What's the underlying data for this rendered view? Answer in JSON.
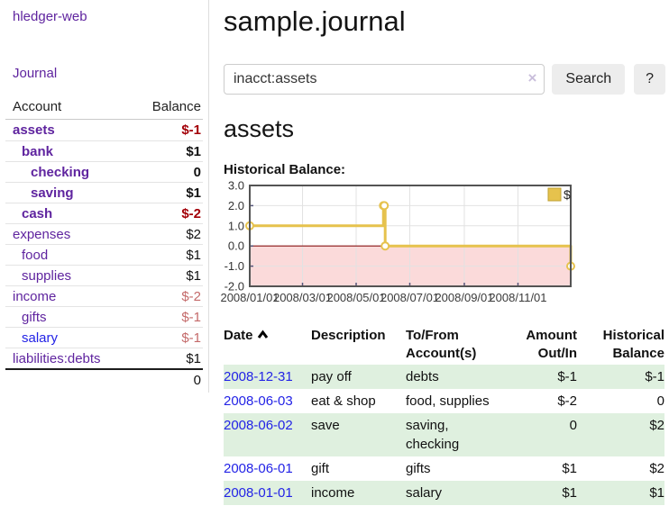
{
  "app": {
    "brand": "hledger-web"
  },
  "nav": {
    "journal": "Journal"
  },
  "sidebar": {
    "header": {
      "account": "Account",
      "balance": "Balance"
    },
    "rows": [
      {
        "name": "assets",
        "balance": "$-1",
        "depth": 1,
        "bold": true,
        "balance_style": "neg-strong"
      },
      {
        "name": "bank",
        "balance": "$1",
        "depth": 2,
        "bold": true,
        "balance_style": "pos"
      },
      {
        "name": "checking",
        "balance": "0",
        "depth": 3,
        "bold": true,
        "balance_style": "pos"
      },
      {
        "name": "saving",
        "balance": "$1",
        "depth": 3,
        "bold": true,
        "balance_style": "pos"
      },
      {
        "name": "cash",
        "balance": "$-2",
        "depth": 2,
        "bold": true,
        "balance_style": "neg-strong"
      },
      {
        "name": "expenses",
        "balance": "$2",
        "depth": 1,
        "bold": false,
        "balance_style": "pos"
      },
      {
        "name": "food",
        "balance": "$1",
        "depth": 2,
        "bold": false,
        "balance_style": "pos"
      },
      {
        "name": "supplies",
        "balance": "$1",
        "depth": 2,
        "bold": false,
        "balance_style": "pos"
      },
      {
        "name": "income",
        "balance": "$-2",
        "depth": 1,
        "bold": false,
        "balance_style": "neg-soft"
      },
      {
        "name": "gifts",
        "balance": "$-1",
        "depth": 2,
        "bold": false,
        "balance_style": "neg-soft"
      },
      {
        "name": "salary",
        "balance": "$-1",
        "depth": 2,
        "bold": false,
        "balance_style": "neg-soft",
        "link": "blue"
      },
      {
        "name": "liabilities:debts",
        "balance": "$1",
        "depth": 1,
        "bold": false,
        "balance_style": "pos"
      }
    ],
    "total": "0"
  },
  "header": {
    "title": "sample.journal"
  },
  "search": {
    "value": "inacct:assets",
    "clear_glyph": "×",
    "button_label": "Search",
    "help_label": "?"
  },
  "account_page": {
    "title": "assets",
    "chart_label": "Historical Balance:"
  },
  "chart_data": {
    "type": "line",
    "title": "Historical Balance:",
    "step": true,
    "series": [
      {
        "name": "$",
        "color": "#e6c24d",
        "points": [
          [
            "2008-01-01",
            1
          ],
          [
            "2008-06-01",
            2
          ],
          [
            "2008-06-02",
            2
          ],
          [
            "2008-06-03",
            0
          ],
          [
            "2008-12-31",
            -1
          ]
        ]
      }
    ],
    "ylim": [
      -2,
      3
    ],
    "yticks": [
      3.0,
      2.0,
      1.0,
      0.0,
      -1.0,
      -2.0
    ],
    "xticks": [
      "2008/01/01",
      "2008/03/01",
      "2008/05/01",
      "2008/07/01",
      "2008/09/01",
      "2008/11/01"
    ],
    "x_range_days": 365,
    "grid": true,
    "negative_fill": "#fbdada",
    "zero_line_color": "#8b1414",
    "border_color": "#545454",
    "legend": {
      "label": "$",
      "position": "top-right",
      "swatch_color": "#e6c24d"
    }
  },
  "register": {
    "headers": {
      "date": "Date",
      "description": "Description",
      "tofrom1": "To/From",
      "tofrom2": "Account(s)",
      "amount1": "Amount",
      "amount2": "Out/In",
      "balance1": "Historical",
      "balance2": "Balance"
    },
    "rows": [
      {
        "date": "2008-12-31",
        "description": "pay off",
        "accounts": "debts",
        "amount": "$-1",
        "amount_neg": true,
        "balance": "$-1",
        "balance_neg": true
      },
      {
        "date": "2008-06-03",
        "description": "eat & shop",
        "accounts": "food, supplies",
        "amount": "$-2",
        "amount_neg": true,
        "balance": "0",
        "balance_neg": false
      },
      {
        "date": "2008-06-02",
        "description": "save",
        "accounts": "saving, checking",
        "amount": "0",
        "amount_neg": false,
        "balance": "$2",
        "balance_neg": false
      },
      {
        "date": "2008-06-01",
        "description": "gift",
        "accounts": "gifts",
        "amount": "$1",
        "amount_neg": false,
        "balance": "$2",
        "balance_neg": false
      },
      {
        "date": "2008-01-01",
        "description": "income",
        "accounts": "salary",
        "amount": "$1",
        "amount_neg": false,
        "balance": "$1",
        "balance_neg": false
      }
    ]
  }
}
